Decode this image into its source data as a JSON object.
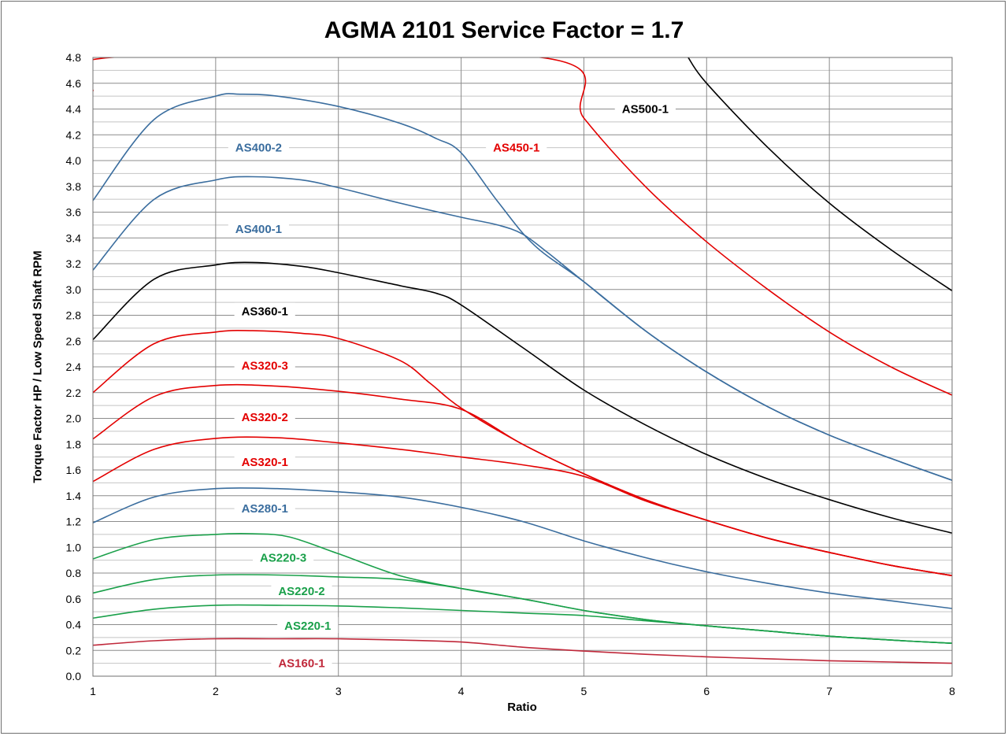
{
  "chart_data": {
    "type": "line",
    "title": "AGMA 2101 Service Factor = 1.7",
    "xlabel": "Ratio",
    "ylabel": "Torque Factor  HP / Low Speed Shaft RPM",
    "xlim": [
      1,
      8
    ],
    "ylim": [
      0,
      4.8
    ],
    "xticks": [
      "1",
      "2",
      "3",
      "4",
      "5",
      "6",
      "7",
      "8"
    ],
    "yticks": [
      "0.0",
      "0.2",
      "0.4",
      "0.6",
      "0.8",
      "1.0",
      "1.2",
      "1.4",
      "1.6",
      "1.8",
      "2.0",
      "2.2",
      "2.4",
      "2.6",
      "2.8",
      "3.0",
      "3.2",
      "3.4",
      "3.6",
      "3.8",
      "4.0",
      "4.2",
      "4.4",
      "4.6",
      "4.8"
    ],
    "grid": true,
    "colors": {
      "red": "#e30000",
      "blue": "#3a6d9e",
      "black": "#000000",
      "green": "#1aa04a",
      "darkred": "#c0283a",
      "grid_major": "#8c8c8c",
      "grid_minor": "#c4c4c4"
    },
    "series": [
      {
        "name": "AS160-1",
        "color": "#c0283a",
        "label_at": [
          2.7,
          0.1
        ],
        "x": [
          1,
          1.5,
          2,
          2.5,
          3,
          3.5,
          4,
          4.5,
          5,
          5.5,
          6,
          6.5,
          7,
          7.5,
          8
        ],
        "y": [
          0.24,
          0.275,
          0.29,
          0.29,
          0.29,
          0.28,
          0.265,
          0.225,
          0.195,
          0.17,
          0.15,
          0.135,
          0.12,
          0.11,
          0.1
        ]
      },
      {
        "name": "AS220-1",
        "color": "#1aa04a",
        "label_at": [
          2.75,
          0.39
        ],
        "x": [
          1,
          1.5,
          2,
          2.5,
          3,
          3.5,
          4,
          4.5,
          5,
          5.5,
          6,
          6.5,
          7,
          7.5,
          8
        ],
        "y": [
          0.45,
          0.52,
          0.55,
          0.55,
          0.545,
          0.53,
          0.51,
          0.49,
          0.47,
          0.43,
          0.39,
          0.35,
          0.31,
          0.28,
          0.255
        ]
      },
      {
        "name": "AS220-2",
        "color": "#1aa04a",
        "label_at": [
          2.7,
          0.66
        ],
        "x": [
          1,
          1.5,
          2,
          2.5,
          3,
          3.5,
          4,
          4.5,
          5,
          5.5,
          6,
          6.5,
          7,
          7.5,
          8
        ],
        "y": [
          0.645,
          0.75,
          0.785,
          0.785,
          0.77,
          0.75,
          0.68,
          0.6,
          0.51,
          0.44,
          0.39,
          0.35,
          0.31,
          0.28,
          0.255
        ]
      },
      {
        "name": "AS220-3",
        "color": "#1aa04a",
        "label_at": [
          2.55,
          0.92
        ],
        "x": [
          1,
          1.5,
          2,
          2.3,
          2.6,
          3,
          3.5,
          4,
          4.5,
          5,
          5.5,
          6,
          6.5,
          7,
          7.5,
          8
        ],
        "y": [
          0.91,
          1.06,
          1.1,
          1.105,
          1.08,
          0.95,
          0.78,
          0.68,
          0.6,
          0.51,
          0.44,
          0.39,
          0.35,
          0.31,
          0.28,
          0.255
        ]
      },
      {
        "name": "AS280-1",
        "color": "#3a6d9e",
        "label_at": [
          2.4,
          1.3
        ],
        "x": [
          1,
          1.5,
          2,
          2.5,
          3,
          3.5,
          4,
          4.5,
          5,
          5.5,
          6,
          6.5,
          7,
          7.5,
          8
        ],
        "y": [
          1.19,
          1.39,
          1.455,
          1.455,
          1.43,
          1.39,
          1.31,
          1.2,
          1.05,
          0.92,
          0.81,
          0.72,
          0.645,
          0.585,
          0.525
        ]
      },
      {
        "name": "AS320-1",
        "color": "#e30000",
        "label_at": [
          2.4,
          1.66
        ],
        "x": [
          1,
          1.5,
          2,
          2.5,
          3,
          3.5,
          4,
          4.5,
          5,
          5.5,
          6,
          6.5,
          7,
          7.5,
          8
        ],
        "y": [
          1.51,
          1.76,
          1.845,
          1.85,
          1.81,
          1.76,
          1.7,
          1.64,
          1.55,
          1.36,
          1.21,
          1.07,
          0.96,
          0.86,
          0.78
        ]
      },
      {
        "name": "AS320-2",
        "color": "#e30000",
        "label_at": [
          2.4,
          2.01
        ],
        "x": [
          1,
          1.5,
          2,
          2.5,
          3,
          3.5,
          4,
          4.5,
          5,
          5.5,
          6,
          6.5,
          7,
          7.5,
          8
        ],
        "y": [
          1.84,
          2.17,
          2.255,
          2.25,
          2.21,
          2.15,
          2.07,
          1.8,
          1.57,
          1.37,
          1.21,
          1.07,
          0.96,
          0.86,
          0.78
        ]
      },
      {
        "name": "AS320-3",
        "color": "#e30000",
        "label_at": [
          2.4,
          2.41
        ],
        "x": [
          1,
          1.5,
          2,
          2.3,
          2.7,
          3,
          3.5,
          3.75,
          4,
          4.5,
          5,
          5.5,
          6,
          6.5,
          7,
          7.5,
          8
        ],
        "y": [
          2.2,
          2.58,
          2.67,
          2.68,
          2.66,
          2.62,
          2.45,
          2.27,
          2.08,
          1.8,
          1.57,
          1.37,
          1.21,
          1.07,
          0.96,
          0.86,
          0.78
        ]
      },
      {
        "name": "AS360-1",
        "color": "#000000",
        "label_at": [
          2.4,
          2.83
        ],
        "x": [
          1,
          1.5,
          2,
          2.3,
          2.7,
          3,
          3.5,
          3.8,
          4,
          4.5,
          5,
          5.5,
          6,
          6.5,
          7,
          7.5,
          8
        ],
        "y": [
          2.61,
          3.08,
          3.19,
          3.21,
          3.18,
          3.13,
          3.03,
          2.97,
          2.88,
          2.55,
          2.22,
          1.95,
          1.72,
          1.53,
          1.37,
          1.23,
          1.11
        ]
      },
      {
        "name": "AS400-1",
        "color": "#3a6d9e",
        "label_at": [
          2.35,
          3.47
        ],
        "x": [
          1,
          1.5,
          2,
          2.3,
          2.7,
          3,
          3.5,
          4,
          4.3,
          4.5,
          4.7,
          5,
          5.5,
          6,
          6.5,
          7,
          7.5,
          8
        ],
        "y": [
          3.15,
          3.7,
          3.85,
          3.875,
          3.85,
          3.79,
          3.67,
          3.56,
          3.5,
          3.43,
          3.29,
          3.06,
          2.68,
          2.36,
          2.09,
          1.87,
          1.69,
          1.52
        ]
      },
      {
        "name": "AS400-2",
        "color": "#3a6d9e",
        "label_at": [
          2.35,
          4.1
        ],
        "x": [
          1,
          1.5,
          2,
          2.2,
          2.5,
          3,
          3.5,
          3.8,
          4,
          4.3,
          4.6,
          5,
          5.5,
          6,
          6.5,
          7,
          7.5,
          8
        ],
        "y": [
          3.69,
          4.32,
          4.5,
          4.515,
          4.5,
          4.42,
          4.29,
          4.17,
          4.06,
          3.68,
          3.34,
          3.06,
          2.68,
          2.36,
          2.09,
          1.87,
          1.69,
          1.52
        ]
      },
      {
        "name": "AS450-1",
        "color": "#e30000",
        "label_at": [
          4.45,
          4.1
        ],
        "x": [
          1,
          1.15,
          4.65,
          5,
          5.5,
          6,
          6.5,
          7,
          7.5,
          8
        ],
        "y": [
          4.54,
          4.8,
          4.8,
          4.33,
          3.8,
          3.37,
          3.0,
          2.67,
          2.4,
          2.18
        ]
      },
      {
        "name": "AS500-1",
        "color": "#000000",
        "label_at": [
          5.5,
          4.4
        ],
        "x": [
          5.85,
          6,
          6.5,
          7,
          7.5,
          8
        ],
        "y": [
          4.8,
          4.6,
          4.1,
          3.67,
          3.31,
          2.99
        ]
      }
    ]
  }
}
